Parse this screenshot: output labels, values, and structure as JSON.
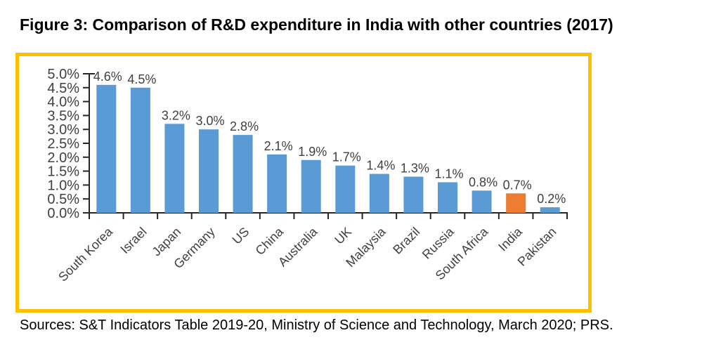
{
  "figure": {
    "title": "Figure 3: Comparison of R&D expenditure in India with other countries (2017)",
    "source_note": "Sources: S&T Indicators Table 2019-20, Ministry of Science and Technology, March 2020; PRS."
  },
  "chart_data": {
    "type": "bar",
    "title": "Figure 3: Comparison of R&D expenditure in India with other countries (2017)",
    "categories": [
      "South Korea",
      "Israel",
      "Japan",
      "Germany",
      "US",
      "China",
      "Australia",
      "UK",
      "Malaysia",
      "Brazil",
      "Russia",
      "South Africa",
      "India",
      "Pakistan"
    ],
    "values": [
      4.6,
      4.5,
      3.2,
      3.0,
      2.8,
      2.1,
      1.9,
      1.7,
      1.4,
      1.3,
      1.1,
      0.8,
      0.7,
      0.2
    ],
    "data_labels": [
      "4.6%",
      "4.5%",
      "3.2%",
      "3.0%",
      "2.8%",
      "2.1%",
      "1.9%",
      "1.7%",
      "1.4%",
      "1.3%",
      "1.1%",
      "0.8%",
      "0.7%",
      "0.2%"
    ],
    "xlabel": "",
    "ylabel": "",
    "ylim": [
      0,
      5
    ],
    "ytick_step": 0.5,
    "ytick_labels": [
      "0.0%",
      "0.5%",
      "1.0%",
      "1.5%",
      "2.0%",
      "2.5%",
      "3.0%",
      "3.5%",
      "4.0%",
      "4.5%",
      "5.0%"
    ],
    "grid": false,
    "legend": "none",
    "x_label_rotation": -45,
    "bar_color": "#5B9BD5",
    "highlight": {
      "index": 12,
      "category": "India",
      "color": "#ED7D31"
    },
    "frame_color": "#FFC000",
    "axis_color": "#262626",
    "label_color": "#404040"
  }
}
